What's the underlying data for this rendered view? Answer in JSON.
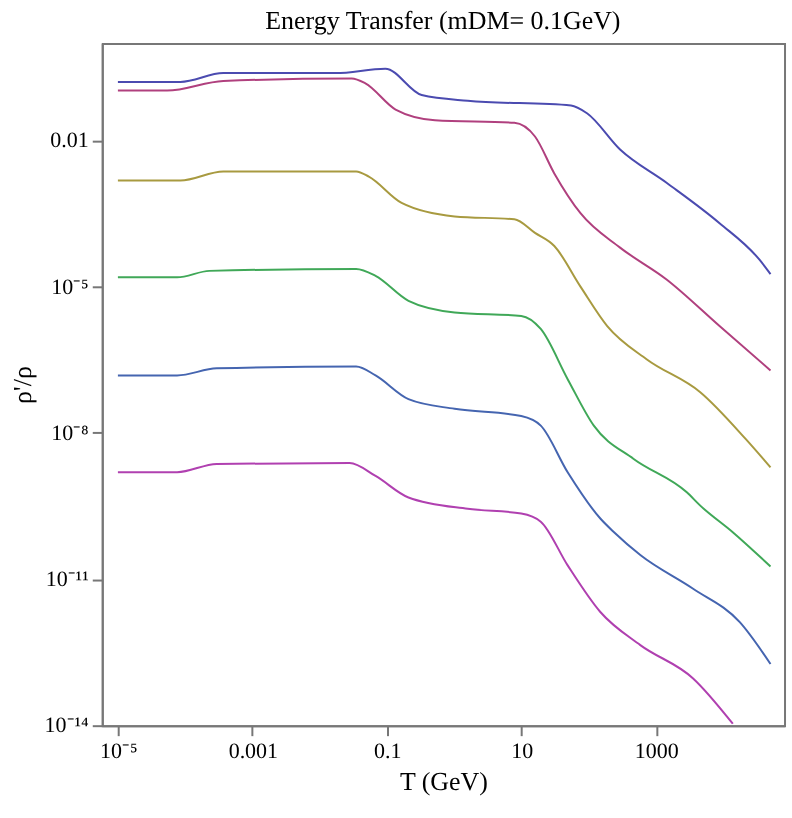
{
  "chart_data": {
    "type": "line",
    "title": "Energy Transfer  (mDM= 0.1GeV)",
    "xlabel": "T (GeV)",
    "ylabel": "ρ'/ρ",
    "log": "xy",
    "grid": false,
    "marker": "none",
    "line_style": "solid",
    "xlim": [
      5.75e-06,
      81000
    ],
    "ylim": [
      1e-14,
      1
    ],
    "xticks": [
      {
        "value": 1e-05,
        "label": "10⁻⁵"
      },
      0.001,
      0.1,
      10,
      1000
    ],
    "yticks": [
      {
        "value": 1e-14,
        "label": "10⁻¹⁴"
      },
      {
        "value": 1e-11,
        "label": "10⁻¹¹"
      },
      {
        "value": 1e-08,
        "label": "10⁻⁸"
      },
      {
        "value": 1e-05,
        "label": "10⁻⁵"
      },
      0.01
    ],
    "series": [
      {
        "color": "#4b4bb0",
        "x": [
          1e-05,
          8.5e-05,
          0.00037,
          0.0174,
          0.095,
          0.33,
          1.6,
          55,
          95,
          295,
          1450,
          8900,
          34700,
          51000
        ],
        "values": [
          0.158,
          0.158,
          0.24,
          0.24,
          0.295,
          0.085,
          0.065,
          0.052,
          0.036,
          0.0065,
          0.00135,
          0.0002,
          3.6e-05,
          1.8e-05
        ]
      },
      {
        "color": "#b0407e",
        "x": [
          1e-05,
          5.4e-05,
          0.00037,
          0.03,
          0.048,
          0.135,
          0.52,
          7.9,
          16,
          31,
          76,
          295,
          1450,
          8900,
          51000
        ],
        "values": [
          0.105,
          0.105,
          0.166,
          0.186,
          0.148,
          0.043,
          0.026,
          0.023,
          0.012,
          0.0021,
          0.00032,
          6.3e-05,
          1.4e-05,
          1.55e-06,
          1.9e-07
        ]
      },
      {
        "color": "#a89a40",
        "x": [
          1e-05,
          8.5e-05,
          0.00037,
          0.035,
          0.054,
          0.166,
          1.02,
          7.9,
          16,
          31,
          76,
          190,
          740,
          4600,
          21900,
          51000
        ],
        "values": [
          0.0015,
          0.0015,
          0.0023,
          0.0023,
          0.0018,
          0.00052,
          0.000275,
          0.00024,
          0.000126,
          6.8e-05,
          1e-05,
          1.55e-06,
          3.2e-07,
          6.8e-08,
          7.4e-09,
          1.95e-09
        ]
      },
      {
        "color": "#40a858",
        "x": [
          1e-05,
          7.6e-05,
          0.00023,
          0.035,
          0.068,
          0.21,
          1.02,
          10,
          19.5,
          49,
          120,
          470,
          2900,
          4600,
          14000,
          51000
        ],
        "values": [
          1.55e-05,
          1.55e-05,
          2.1e-05,
          2.3e-05,
          1.66e-05,
          5.1e-06,
          2.95e-06,
          2.5e-06,
          1.35e-06,
          1.26e-07,
          1.4e-08,
          2.9e-09,
          6e-10,
          3.2e-10,
          9.1e-11,
          1.8e-11
        ]
      },
      {
        "color": "#4565b0",
        "x": [
          1e-05,
          7.6e-05,
          0.000295,
          0.035,
          0.068,
          0.21,
          1.02,
          10,
          19.5,
          49,
          150,
          240,
          590,
          3600,
          17800,
          51000
        ],
        "values": [
          1.5e-07,
          1.5e-07,
          2.1e-07,
          2.3e-07,
          1.5e-07,
          4.9e-08,
          3.1e-08,
          2.2e-08,
          1.4e-08,
          1.55e-09,
          1.74e-10,
          9.1e-11,
          3.1e-11,
          6.3e-12,
          1.3e-12,
          1.8e-13
        ]
      },
      {
        "color": "#b040b0",
        "x": [
          1e-05,
          7.6e-05,
          0.000295,
          0.028,
          0.068,
          0.21,
          1.6,
          10,
          19.5,
          49,
          150,
          590,
          3600,
          14000
        ],
        "values": [
          1.55e-09,
          1.55e-09,
          2.3e-09,
          2.4e-09,
          1.3e-09,
          4.7e-10,
          2.75e-10,
          2.2e-10,
          1.5e-10,
          1.9e-11,
          2.1e-12,
          4.4e-13,
          9.1e-14,
          1.07e-14
        ]
      }
    ]
  }
}
